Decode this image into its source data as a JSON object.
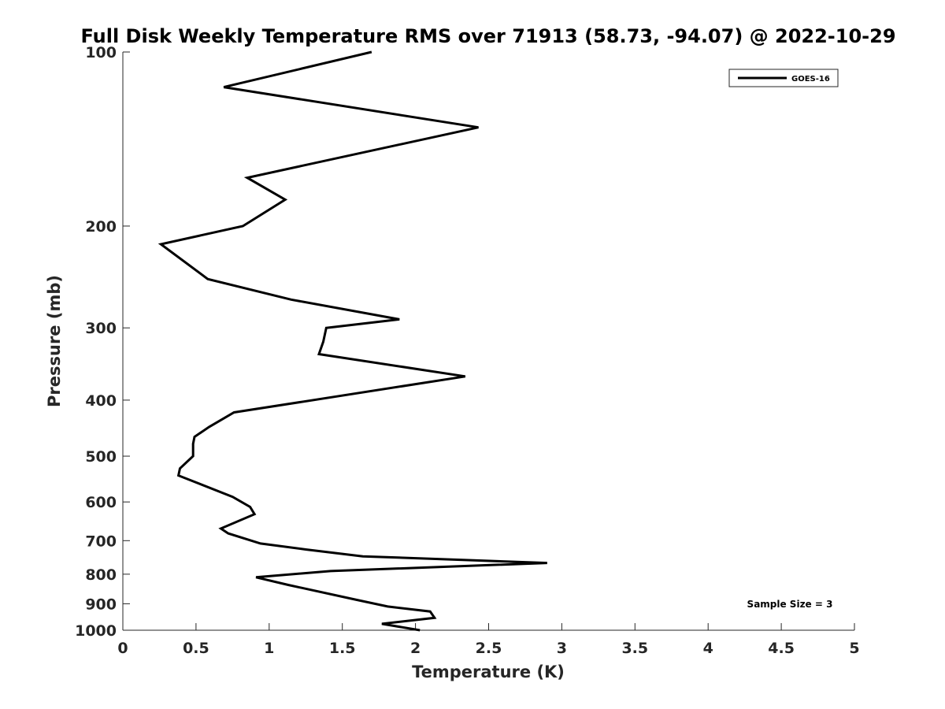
{
  "chart_data": {
    "type": "line",
    "title": "Full Disk Weekly Temperature RMS over 71913 (58.73, -94.07) @ 2022-10-29",
    "xlabel": "Temperature (K)",
    "ylabel": "Pressure (mb)",
    "xlim": [
      0,
      5
    ],
    "ylim": [
      100,
      1000
    ],
    "y_scale": "log",
    "y_reversed": true,
    "xticks": [
      0,
      0.5,
      1,
      1.5,
      2,
      2.5,
      3,
      3.5,
      4,
      4.5,
      5
    ],
    "xtick_labels": [
      "0",
      "0.5",
      "1",
      "1.5",
      "2",
      "2.5",
      "3",
      "3.5",
      "4",
      "4.5",
      "5"
    ],
    "yticks": [
      100,
      200,
      300,
      400,
      500,
      600,
      700,
      800,
      900,
      1000
    ],
    "ytick_labels": [
      "100",
      "200",
      "300",
      "400",
      "500",
      "600",
      "700",
      "800",
      "900",
      "1000"
    ],
    "grid": false,
    "legend_position": "top-right",
    "series": [
      {
        "name": "GOES-16",
        "color": "#000000",
        "points": [
          [
            1.7,
            100
          ],
          [
            0.69,
            115
          ],
          [
            2.43,
            135
          ],
          [
            0.85,
            165
          ],
          [
            1.11,
            180
          ],
          [
            0.82,
            200
          ],
          [
            0.26,
            215
          ],
          [
            0.58,
            247
          ],
          [
            1.15,
            268
          ],
          [
            1.89,
            290
          ],
          [
            1.39,
            300
          ],
          [
            1.37,
            317
          ],
          [
            1.34,
            333
          ],
          [
            2.34,
            364
          ],
          [
            0.76,
            420
          ],
          [
            0.59,
            445
          ],
          [
            0.49,
            463
          ],
          [
            0.48,
            476
          ],
          [
            0.48,
            500
          ],
          [
            0.39,
            525
          ],
          [
            0.38,
            540
          ],
          [
            0.75,
            588
          ],
          [
            0.87,
            612
          ],
          [
            0.9,
            630
          ],
          [
            0.67,
            667
          ],
          [
            0.72,
            680
          ],
          [
            0.94,
            708
          ],
          [
            1.25,
            725
          ],
          [
            1.64,
            745
          ],
          [
            2.9,
            765
          ],
          [
            1.42,
            790
          ],
          [
            0.91,
            810
          ],
          [
            1.13,
            835
          ],
          [
            1.59,
            885
          ],
          [
            1.81,
            910
          ],
          [
            2.1,
            928
          ],
          [
            2.13,
            952
          ],
          [
            1.77,
            975
          ],
          [
            2.03,
            1000
          ]
        ]
      }
    ],
    "annotation": "Sample Size = 3"
  }
}
